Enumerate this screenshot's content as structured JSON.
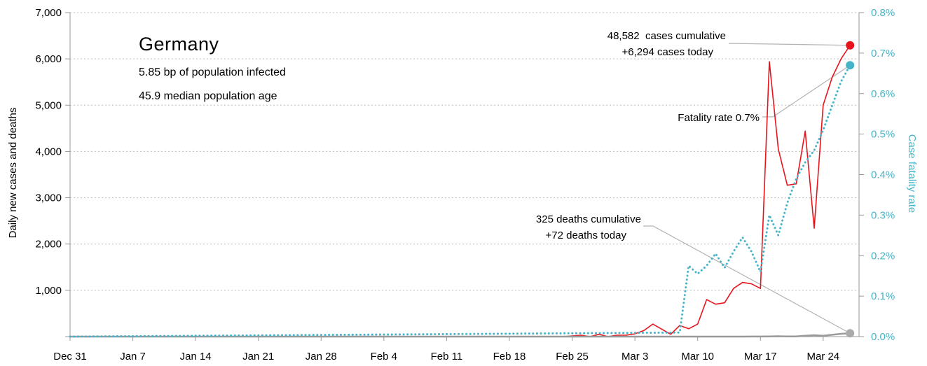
{
  "chart_data": {
    "type": "line",
    "country": "Germany",
    "info_lines": [
      "5.85 bp of population infected",
      "45.9 median population age"
    ],
    "ylabel": "Daily new cases and deaths",
    "ylabel_right": "Case fatality rate",
    "ylim": [
      0,
      7000
    ],
    "ylim_right": [
      0,
      0.008
    ],
    "y_ticks": [
      0,
      1000,
      2000,
      3000,
      4000,
      5000,
      6000,
      7000
    ],
    "y_tick_labels": [
      "",
      "1,000",
      "2,000",
      "3,000",
      "4,000",
      "5,000",
      "6,000",
      "7,000"
    ],
    "y_right_ticks": [
      0,
      0.001,
      0.002,
      0.003,
      0.004,
      0.005,
      0.006,
      0.007,
      0.008
    ],
    "y_right_tick_labels": [
      "0.0%",
      "0.1%",
      "0.2%",
      "0.3%",
      "0.4%",
      "0.5%",
      "0.6%",
      "0.7%",
      "0.8%"
    ],
    "x_start": "Dec 31",
    "x_max_day": 88,
    "x_ticks": [
      0,
      7,
      14,
      21,
      28,
      35,
      42,
      49,
      56,
      63,
      70,
      77,
      84
    ],
    "x_tick_labels": [
      "Dec 31",
      "Jan 7",
      "Jan 14",
      "Jan 21",
      "Jan 28",
      "Feb 4",
      "Feb 11",
      "Feb 18",
      "Feb 25",
      "Mar 3",
      "Mar 10",
      "Mar 17",
      "Mar 24"
    ],
    "series": [
      {
        "name": "",
        "kind": "cases",
        "color": "#e8141c",
        "style": "solid",
        "axis": "left",
        "x": [
          0,
          55,
          57,
          58,
          59,
          60,
          61,
          62,
          63,
          64,
          65,
          66,
          67,
          68,
          69,
          70,
          71,
          72,
          73,
          74,
          75,
          76,
          77,
          78,
          79,
          80,
          81,
          82,
          83,
          84,
          85,
          86,
          87
        ],
        "y": [
          0,
          0,
          30,
          0,
          50,
          0,
          30,
          30,
          60,
          130,
          270,
          160,
          50,
          240,
          170,
          270,
          800,
          700,
          730,
          1040,
          1170,
          1140,
          1040,
          5940,
          4050,
          3270,
          3300,
          4440,
          2340,
          5000,
          5600,
          6000,
          6294
        ]
      },
      {
        "name": "",
        "kind": "deaths",
        "color": "#999999",
        "style": "solid",
        "axis": "left",
        "x": [
          0,
          70,
          71,
          72,
          73,
          74,
          75,
          76,
          77,
          78,
          79,
          80,
          81,
          82,
          83,
          84,
          85,
          86,
          87
        ],
        "y": [
          0,
          0,
          0,
          0,
          0,
          0,
          0,
          2,
          2,
          3,
          8,
          3,
          5,
          20,
          30,
          20,
          40,
          60,
          72
        ]
      },
      {
        "name": "",
        "kind": "fatality_rate",
        "color": "#46b4c8",
        "style": "dotted",
        "axis": "right",
        "x": [
          0,
          68,
          69,
          70,
          71,
          72,
          73,
          74,
          75,
          76,
          77,
          78,
          79,
          80,
          81,
          82,
          83,
          84,
          85,
          86,
          87
        ],
        "y": [
          0,
          0.0001,
          0.00175,
          0.00155,
          0.00175,
          0.00205,
          0.0017,
          0.0021,
          0.00245,
          0.0021,
          0.0016,
          0.003,
          0.0025,
          0.0033,
          0.0039,
          0.0043,
          0.0046,
          0.0051,
          0.0057,
          0.0063,
          0.0067
        ]
      }
    ],
    "annotations": [
      {
        "id": "cases",
        "lines": [
          "48,582  cases cumulative",
          "+6,294 cases today"
        ],
        "point_x": 87,
        "point_y": 6294,
        "axis": "left",
        "color": "#e8141c"
      },
      {
        "id": "fatality",
        "lines": [
          "Fatality rate 0.7%"
        ],
        "point_x": 87,
        "point_y": 0.0067,
        "axis": "right",
        "color": "#46b4c8"
      },
      {
        "id": "deaths",
        "lines": [
          "325 deaths cumulative",
          "+72 deaths today"
        ],
        "point_x": 87,
        "point_y": 72,
        "axis": "left",
        "color": "#aaaaaa"
      }
    ]
  }
}
